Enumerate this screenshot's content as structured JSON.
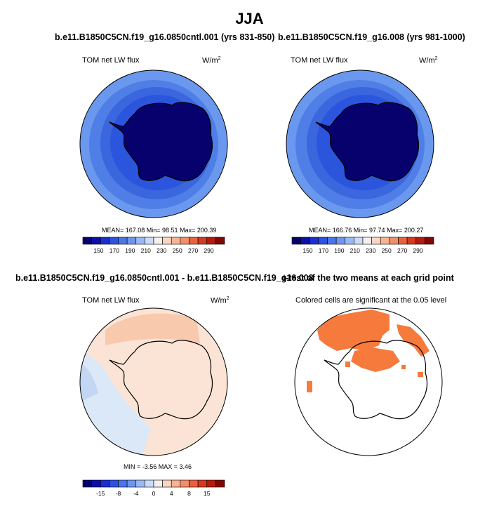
{
  "title": "JJA",
  "panels": [
    {
      "title": "b.e11.B1850C5CN.f19_g16.0850cntl.001 (yrs 831-850)",
      "field_label": "TOM net LW flux",
      "units": "W/m",
      "units_sup": "2",
      "stats": "MEAN= 167.08  Min=  98.51  Max= 200.39"
    },
    {
      "title": "b.e11.B1850C5CN.f19_g16.008 (yrs 981-1000)",
      "field_label": "TOM net LW flux",
      "units": "W/m",
      "units_sup": "2",
      "stats": "MEAN= 166.76  Min=  97.74  Max= 200.27"
    },
    {
      "title": "b.e11.B1850C5CN.f19_g16.0850cntl.001 - b.e11.B1850C5CN.f19_g16.008",
      "field_label": "TOM net LW flux",
      "units": "W/m",
      "units_sup": "2",
      "stats": "MIN =  -3.56 MAX =   3.46"
    },
    {
      "title": "t-test of the two means at each grid point",
      "field_label": "Colored cells are significant at the 0.05 level"
    }
  ],
  "colorbar_abs": {
    "ticks": [
      "150",
      "170",
      "190",
      "210",
      "230",
      "250",
      "270",
      "290"
    ],
    "colors": [
      "#07016e",
      "#0b0fa8",
      "#1a2fd0",
      "#2b52e0",
      "#4a76ea",
      "#6f96ee",
      "#9cb8f2",
      "#c9dbf8",
      "#f4f0ee",
      "#fbd5c2",
      "#f7b394",
      "#f28e69",
      "#e9623f",
      "#d63a1f",
      "#b51a0e",
      "#7d0804"
    ]
  },
  "colorbar_diff": {
    "ticks": [
      "-15",
      "-8",
      "-4",
      "0",
      "4",
      "8",
      "15"
    ],
    "colors": [
      "#07016e",
      "#0b0fa8",
      "#1a2fd0",
      "#2b52e0",
      "#4a76ea",
      "#6f96ee",
      "#9cb8f2",
      "#c9dbf8",
      "#f4f0ee",
      "#fbd5c2",
      "#f7b394",
      "#f28e69",
      "#e9623f",
      "#d63a1f",
      "#b51a0e",
      "#7d0804"
    ]
  },
  "map_colors": {
    "abs_ring1": "#6a98ee",
    "abs_ring2": "#4f7fe6",
    "abs_ring3": "#3a66de",
    "abs_ring4": "#2b55dc",
    "abs_continent": "#07016e",
    "diff_base": "#fbe4d5",
    "diff_warm": "#f8c9ad",
    "diff_cool": "#dbe8f8",
    "diff_cooler": "#c3d6f3",
    "sig_cells": "#f57a3c"
  }
}
